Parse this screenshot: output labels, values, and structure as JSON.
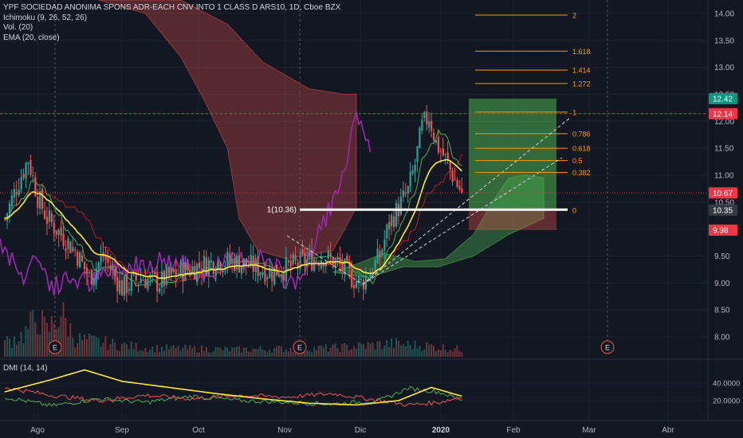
{
  "legend": {
    "title": "YPF SOCIEDAD ANONIMA SPONS ADR-EACH CNV INTO 1 CLASS D ARS10, 1D, Cboe BZX",
    "ichimoku": "Ichimoku (9, 26, 52, 26)",
    "volume": "Vol. (20)",
    "ema": "EMA (20, close)",
    "dmi": "DMI (14, 14)"
  },
  "price_axis": {
    "ticks": [
      "14.00",
      "13.50",
      "13.00",
      "12.50",
      "12.00",
      "11.50",
      "11.00",
      "10.50",
      "10.00",
      "9.50",
      "9.00",
      "8.50",
      "8.00"
    ],
    "tick_values": [
      14,
      13.5,
      13,
      12.5,
      12,
      11.5,
      11,
      10.5,
      10,
      9.5,
      9,
      8.5,
      8
    ],
    "badges": [
      {
        "text": "12.42",
        "value": 12.42,
        "color": "#089981"
      },
      {
        "text": "12.14",
        "value": 12.14,
        "color": "#f23645"
      },
      {
        "text": "10.67",
        "value": 10.67,
        "color": "#f23645"
      },
      {
        "text": "10.35",
        "value": 10.35,
        "color": "#363a45"
      },
      {
        "text": "9.98",
        "value": 9.98,
        "color": "#f23645"
      }
    ]
  },
  "dmi_axis": {
    "ticks": [
      "40.0000",
      "20.0000"
    ],
    "tick_values": [
      40,
      20
    ]
  },
  "time_axis": {
    "labels": [
      "Ago",
      "Sep",
      "Oct",
      "Nov",
      "Dic",
      "2020",
      "Feb",
      "Mar",
      "Abr"
    ]
  },
  "earnings_markers": [
    "E",
    "E",
    "E"
  ],
  "fib": {
    "levels": [
      {
        "label": "2",
        "value": 13.97
      },
      {
        "label": "1.618",
        "value": 13.3
      },
      {
        "label": "1.414",
        "value": 12.95
      },
      {
        "label": "1.272",
        "value": 12.7
      },
      {
        "label": "1",
        "value": 12.17
      },
      {
        "label": "0.786",
        "value": 11.77
      },
      {
        "label": "0.618",
        "value": 11.5
      },
      {
        "label": "0.5",
        "value": 11.27
      },
      {
        "label": "0.382",
        "value": 11.05
      },
      {
        "label": "0",
        "value": 10.35
      }
    ],
    "color": "#ff9800"
  },
  "annotation": {
    "text": "1(10.36)",
    "value": 10.36
  },
  "position": {
    "entry": 10.35,
    "target": 12.42,
    "stop": 9.98
  },
  "colors": {
    "up": "#26a69a",
    "down": "#ef5350",
    "ema": "#ffeb3b",
    "lagging": "#9c27b0",
    "cloud_bear": "rgba(239,83,80,0.30)",
    "cloud_bull": "rgba(76,175,80,0.40)",
    "background": "#131722",
    "grid": "#1e222d"
  },
  "chart_data": {
    "type": "candlestick",
    "title": "YPF SOCIEDAD ANONIMA SPONS ADR-EACH CNV INTO 1 CLASS D ARS10, 1D, Cboe BZX",
    "ylim": [
      7.6,
      14.25
    ],
    "x_labels": [
      "Ago",
      "Sep",
      "Oct",
      "Nov",
      "Dic",
      "2020",
      "Feb",
      "Mar",
      "Abr"
    ],
    "close_anchors": [
      [
        0,
        10.2
      ],
      [
        6,
        10.9
      ],
      [
        10,
        11.3
      ],
      [
        14,
        10.6
      ],
      [
        18,
        10.2
      ],
      [
        24,
        9.9
      ],
      [
        30,
        9.6
      ],
      [
        36,
        9.1
      ],
      [
        42,
        9.5
      ],
      [
        50,
        8.9
      ],
      [
        58,
        9.1
      ],
      [
        66,
        9.0
      ],
      [
        74,
        9.2
      ],
      [
        82,
        9.3
      ],
      [
        90,
        9.4
      ],
      [
        98,
        9.4
      ],
      [
        106,
        9.3
      ],
      [
        114,
        9.2
      ],
      [
        122,
        9.3
      ],
      [
        128,
        9.4
      ],
      [
        136,
        9.5
      ],
      [
        142,
        9.35
      ],
      [
        148,
        9.1
      ],
      [
        152,
        9.0
      ],
      [
        156,
        9.2
      ],
      [
        160,
        9.5
      ],
      [
        164,
        10.1
      ],
      [
        168,
        10.4
      ],
      [
        172,
        10.7
      ],
      [
        175,
        11.2
      ],
      [
        178,
        11.9
      ],
      [
        181,
        12.1
      ],
      [
        184,
        11.6
      ],
      [
        188,
        11.3
      ],
      [
        192,
        10.9
      ],
      [
        195,
        10.67
      ]
    ],
    "current_price": 10.67,
    "volume_profile": [
      [
        0,
        20
      ],
      [
        8,
        30
      ],
      [
        14,
        55
      ],
      [
        18,
        35
      ],
      [
        24,
        60
      ],
      [
        30,
        25
      ],
      [
        40,
        20
      ],
      [
        60,
        12
      ],
      [
        100,
        10
      ],
      [
        140,
        12
      ],
      [
        165,
        18
      ],
      [
        180,
        15
      ],
      [
        195,
        10
      ]
    ],
    "volume_max": 60,
    "dmi": {
      "adx": [
        [
          0,
          30
        ],
        [
          20,
          44
        ],
        [
          34,
          55
        ],
        [
          50,
          42
        ],
        [
          70,
          35
        ],
        [
          90,
          28
        ],
        [
          110,
          22
        ],
        [
          130,
          17
        ],
        [
          150,
          15
        ],
        [
          168,
          20
        ],
        [
          182,
          35
        ],
        [
          195,
          25
        ]
      ],
      "plus_di": [
        [
          0,
          24
        ],
        [
          20,
          14
        ],
        [
          40,
          22
        ],
        [
          60,
          18
        ],
        [
          80,
          25
        ],
        [
          100,
          20
        ],
        [
          120,
          18
        ],
        [
          140,
          16
        ],
        [
          160,
          20
        ],
        [
          172,
          34
        ],
        [
          185,
          30
        ],
        [
          195,
          21
        ]
      ],
      "minus_di": [
        [
          0,
          35
        ],
        [
          20,
          26
        ],
        [
          40,
          20
        ],
        [
          60,
          26
        ],
        [
          80,
          22
        ],
        [
          100,
          26
        ],
        [
          120,
          24
        ],
        [
          140,
          28
        ],
        [
          160,
          20
        ],
        [
          172,
          15
        ],
        [
          185,
          18
        ],
        [
          195,
          24
        ]
      ],
      "ylim": [
        0,
        60
      ]
    }
  }
}
